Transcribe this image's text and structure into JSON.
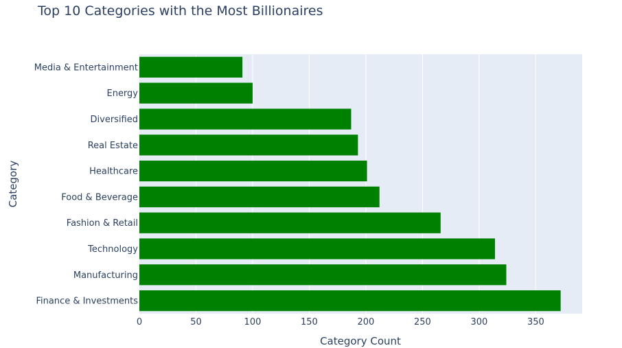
{
  "chart_data": {
    "type": "bar",
    "orientation": "horizontal",
    "title": "Top 10 Categories with the Most Billionaires",
    "xlabel": "Category Count",
    "ylabel": "Category",
    "categories": [
      "Media & Entertainment",
      "Energy",
      "Diversified",
      "Real Estate",
      "Healthcare",
      "Food & Beverage",
      "Fashion & Retail",
      "Technology",
      "Manufacturing",
      "Finance & Investments"
    ],
    "values": [
      91,
      100,
      187,
      193,
      201,
      212,
      266,
      314,
      324,
      372
    ],
    "xlim": [
      0,
      391
    ],
    "xticks": [
      0,
      50,
      100,
      150,
      200,
      250,
      300,
      350
    ],
    "grid": true,
    "bar_color": "#008000",
    "plot_bg": "#e5ecf6",
    "grid_color": "#ffffff",
    "text_color": "#2a3f5f"
  }
}
